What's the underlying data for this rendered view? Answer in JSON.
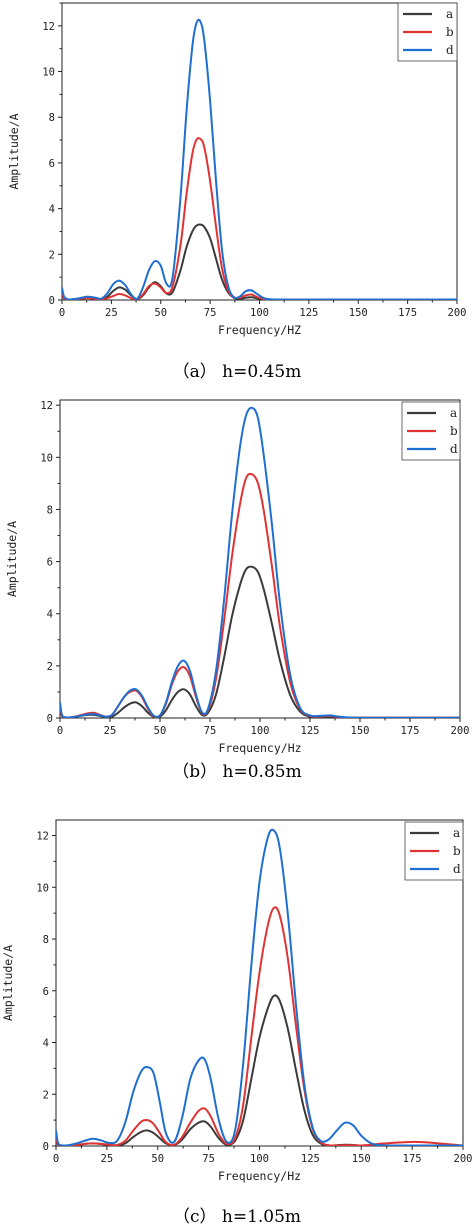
{
  "chart_data": [
    {
      "type": "line",
      "caption": "（a） h=0.45m",
      "xlabel": "Frequency/HZ",
      "ylabel": "Amplitude/A",
      "xlim": [
        0,
        200
      ],
      "ylim": [
        0,
        13
      ],
      "xticks": [
        0,
        25,
        50,
        75,
        100,
        125,
        150,
        175,
        200
      ],
      "yticks": [
        0,
        2,
        4,
        6,
        8,
        10,
        12
      ],
      "legend": "top-right",
      "grid": false,
      "series": [
        {
          "name": "a",
          "color": "#3a3a3a",
          "x": [
            0,
            1,
            3,
            5,
            8,
            10,
            13,
            17,
            20,
            23,
            26,
            29,
            32,
            35,
            38,
            41,
            44,
            47,
            50,
            53,
            56,
            60,
            63,
            66,
            68,
            70,
            72,
            75,
            78,
            81,
            84,
            87,
            90,
            93,
            96,
            99,
            103,
            110,
            130,
            160,
            200
          ],
          "y": [
            0.3,
            0.08,
            0.02,
            0.03,
            0.06,
            0.08,
            0.1,
            0.06,
            0.05,
            0.15,
            0.4,
            0.55,
            0.45,
            0.2,
            0.04,
            0.2,
            0.55,
            0.78,
            0.6,
            0.28,
            0.35,
            1.3,
            2.3,
            3.0,
            3.25,
            3.3,
            3.2,
            2.7,
            1.8,
            0.9,
            0.35,
            0.1,
            0.05,
            0.1,
            0.12,
            0.07,
            0.03,
            0.01,
            0.01,
            0.01,
            0.01
          ]
        },
        {
          "name": "b",
          "color": "#e03434",
          "x": [
            0,
            1,
            3,
            5,
            8,
            10,
            13,
            17,
            20,
            23,
            26,
            29,
            32,
            35,
            38,
            41,
            44,
            47,
            50,
            53,
            56,
            60,
            63,
            66,
            68,
            70,
            72,
            75,
            78,
            81,
            84,
            87,
            90,
            93,
            96,
            99,
            103,
            110,
            130,
            160,
            200
          ],
          "y": [
            0.3,
            0.08,
            0.02,
            0.02,
            0.04,
            0.06,
            0.08,
            0.05,
            0.04,
            0.08,
            0.18,
            0.26,
            0.2,
            0.08,
            0.03,
            0.25,
            0.6,
            0.72,
            0.55,
            0.3,
            0.6,
            2.4,
            4.6,
            6.4,
            7.0,
            7.05,
            6.7,
            5.2,
            3.2,
            1.4,
            0.45,
            0.12,
            0.1,
            0.2,
            0.24,
            0.12,
            0.04,
            0.01,
            0.01,
            0.01,
            0.01
          ]
        },
        {
          "name": "d",
          "color": "#1f6fd1",
          "x": [
            0,
            1,
            3,
            5,
            8,
            10,
            13,
            17,
            20,
            23,
            26,
            29,
            32,
            35,
            38,
            41,
            44,
            47,
            50,
            53,
            56,
            60,
            63,
            66,
            68,
            70,
            72,
            75,
            78,
            81,
            84,
            87,
            90,
            93,
            96,
            99,
            103,
            110,
            130,
            160,
            200
          ],
          "y": [
            0.55,
            0.15,
            0.03,
            0.03,
            0.06,
            0.1,
            0.15,
            0.1,
            0.06,
            0.3,
            0.7,
            0.85,
            0.65,
            0.25,
            0.05,
            0.55,
            1.3,
            1.7,
            1.5,
            0.7,
            1.0,
            4.5,
            8.2,
            11.1,
            12.1,
            12.2,
            11.4,
            8.7,
            5.2,
            2.2,
            0.65,
            0.12,
            0.15,
            0.38,
            0.42,
            0.25,
            0.06,
            0.02,
            0.02,
            0.02,
            0.02
          ]
        }
      ]
    },
    {
      "type": "line",
      "caption": "（b） h=0.85m",
      "xlabel": "Frequency/Hz",
      "ylabel": "Amplitude/A",
      "xlim": [
        0,
        200
      ],
      "ylim": [
        0,
        12.2
      ],
      "xticks": [
        0,
        25,
        50,
        75,
        100,
        125,
        150,
        175,
        200
      ],
      "yticks": [
        0,
        2,
        4,
        6,
        8,
        10,
        12
      ],
      "legend": "top-right",
      "grid": false,
      "series": [
        {
          "name": "a",
          "color": "#3a3a3a",
          "x": [
            0,
            1,
            3,
            6,
            10,
            14,
            17,
            20,
            23,
            26,
            29,
            32,
            35,
            38,
            41,
            44,
            47,
            50,
            53,
            56,
            59,
            62,
            65,
            68,
            71,
            74,
            78,
            82,
            86,
            90,
            93,
            96,
            99,
            102,
            106,
            110,
            115,
            120,
            125,
            130,
            135,
            140,
            150,
            200
          ],
          "y": [
            0.4,
            0.08,
            0.02,
            0.03,
            0.08,
            0.12,
            0.12,
            0.08,
            0.03,
            0.05,
            0.2,
            0.4,
            0.55,
            0.6,
            0.45,
            0.2,
            0.04,
            0.05,
            0.3,
            0.7,
            1.0,
            1.1,
            0.9,
            0.45,
            0.12,
            0.2,
            0.9,
            2.3,
            3.9,
            5.1,
            5.7,
            5.8,
            5.6,
            4.9,
            3.6,
            2.2,
            0.9,
            0.25,
            0.05,
            0.03,
            0.05,
            0.03,
            0.01,
            0.01
          ]
        },
        {
          "name": "b",
          "color": "#e03434",
          "x": [
            0,
            1,
            3,
            6,
            10,
            14,
            17,
            20,
            23,
            26,
            29,
            32,
            35,
            38,
            41,
            44,
            47,
            50,
            53,
            56,
            59,
            62,
            65,
            68,
            71,
            74,
            78,
            82,
            86,
            90,
            93,
            96,
            99,
            102,
            106,
            110,
            115,
            120,
            125,
            130,
            135,
            140,
            150,
            200
          ],
          "y": [
            0.4,
            0.08,
            0.02,
            0.03,
            0.1,
            0.18,
            0.2,
            0.12,
            0.05,
            0.12,
            0.45,
            0.8,
            1.0,
            1.05,
            0.8,
            0.35,
            0.06,
            0.1,
            0.55,
            1.3,
            1.8,
            1.95,
            1.6,
            0.8,
            0.2,
            0.3,
            1.5,
            3.7,
            6.2,
            8.2,
            9.2,
            9.35,
            9.0,
            7.9,
            5.8,
            3.5,
            1.4,
            0.35,
            0.08,
            0.06,
            0.08,
            0.04,
            0.01,
            0.01
          ]
        },
        {
          "name": "d",
          "color": "#1f6fd1",
          "x": [
            0,
            1,
            3,
            6,
            10,
            14,
            17,
            20,
            23,
            26,
            29,
            32,
            35,
            38,
            41,
            44,
            47,
            50,
            53,
            56,
            59,
            62,
            65,
            68,
            71,
            74,
            78,
            82,
            86,
            90,
            93,
            96,
            99,
            102,
            106,
            110,
            115,
            120,
            125,
            130,
            135,
            140,
            150,
            200
          ],
          "y": [
            0.6,
            0.12,
            0.02,
            0.03,
            0.08,
            0.14,
            0.15,
            0.1,
            0.05,
            0.12,
            0.45,
            0.8,
            1.05,
            1.1,
            0.85,
            0.4,
            0.08,
            0.1,
            0.6,
            1.4,
            2.0,
            2.2,
            1.8,
            0.9,
            0.22,
            0.35,
            1.8,
            4.5,
            7.8,
            10.4,
            11.6,
            11.9,
            11.5,
            10.0,
            7.4,
            4.4,
            1.7,
            0.4,
            0.1,
            0.08,
            0.1,
            0.05,
            0.01,
            0.01
          ]
        }
      ]
    },
    {
      "type": "line",
      "caption": "（c） h=1.05m",
      "xlabel": "Frequency/Hz",
      "ylabel": "Amplitude/A",
      "xlim": [
        0,
        200
      ],
      "ylim": [
        0,
        12.6
      ],
      "xticks": [
        0,
        25,
        50,
        75,
        100,
        125,
        150,
        175,
        200
      ],
      "yticks": [
        0,
        2,
        4,
        6,
        8,
        10,
        12
      ],
      "legend": "top-right",
      "grid": false,
      "series": [
        {
          "name": "a",
          "color": "#3a3a3a",
          "x": [
            0,
            1,
            3,
            6,
            10,
            14,
            18,
            22,
            26,
            30,
            34,
            38,
            42,
            45,
            48,
            51,
            54,
            58,
            62,
            66,
            70,
            73,
            76,
            80,
            84,
            88,
            92,
            96,
            100,
            104,
            107,
            110,
            114,
            118,
            122,
            126,
            130,
            134,
            138,
            142,
            146,
            150,
            155,
            160,
            170,
            180,
            200
          ],
          "y": [
            0.3,
            0.06,
            0.02,
            0.02,
            0.04,
            0.08,
            0.1,
            0.08,
            0.04,
            0.02,
            0.1,
            0.35,
            0.55,
            0.6,
            0.5,
            0.3,
            0.1,
            0.03,
            0.25,
            0.65,
            0.9,
            0.95,
            0.75,
            0.3,
            0.05,
            0.2,
            1.0,
            2.6,
            4.2,
            5.3,
            5.8,
            5.6,
            4.5,
            2.9,
            1.4,
            0.45,
            0.1,
            0.02,
            0.03,
            0.05,
            0.04,
            0.02,
            0.03,
            0.02,
            0.01,
            0.01,
            0.01
          ]
        },
        {
          "name": "b",
          "color": "#e03434",
          "x": [
            0,
            1,
            3,
            6,
            10,
            14,
            18,
            22,
            26,
            30,
            34,
            38,
            42,
            45,
            48,
            51,
            54,
            58,
            62,
            66,
            70,
            73,
            76,
            80,
            84,
            88,
            92,
            96,
            100,
            104,
            107,
            110,
            114,
            118,
            122,
            126,
            130,
            134,
            138,
            142,
            146,
            150,
            155,
            160,
            170,
            180,
            200
          ],
          "y": [
            0.3,
            0.06,
            0.02,
            0.02,
            0.04,
            0.08,
            0.1,
            0.08,
            0.05,
            0.04,
            0.2,
            0.6,
            0.95,
            1.0,
            0.85,
            0.5,
            0.15,
            0.04,
            0.35,
            0.9,
            1.35,
            1.45,
            1.15,
            0.45,
            0.08,
            0.3,
            1.6,
            4.2,
            6.7,
            8.5,
            9.2,
            8.9,
            7.2,
            4.6,
            2.2,
            0.7,
            0.15,
            0.03,
            0.02,
            0.03,
            0.03,
            0.02,
            0.05,
            0.09,
            0.14,
            0.15,
            0.02
          ]
        },
        {
          "name": "d",
          "color": "#1f6fd1",
          "x": [
            0,
            1,
            3,
            6,
            10,
            14,
            18,
            22,
            26,
            30,
            34,
            38,
            42,
            45,
            48,
            51,
            54,
            58,
            62,
            66,
            70,
            73,
            76,
            80,
            84,
            88,
            92,
            96,
            100,
            104,
            107,
            110,
            114,
            118,
            122,
            126,
            130,
            134,
            138,
            142,
            146,
            150,
            155,
            160,
            170,
            180,
            200
          ],
          "y": [
            0.6,
            0.12,
            0.02,
            0.03,
            0.1,
            0.2,
            0.28,
            0.22,
            0.12,
            0.2,
            0.9,
            2.1,
            2.9,
            3.05,
            2.8,
            1.7,
            0.5,
            0.15,
            1.1,
            2.6,
            3.3,
            3.35,
            2.6,
            1.0,
            0.15,
            0.6,
            3.2,
            7.0,
            10.2,
            11.9,
            12.2,
            11.5,
            8.9,
            5.4,
            2.4,
            0.75,
            0.2,
            0.25,
            0.6,
            0.9,
            0.8,
            0.4,
            0.1,
            0.03,
            0.02,
            0.02,
            0.02
          ]
        }
      ]
    }
  ]
}
